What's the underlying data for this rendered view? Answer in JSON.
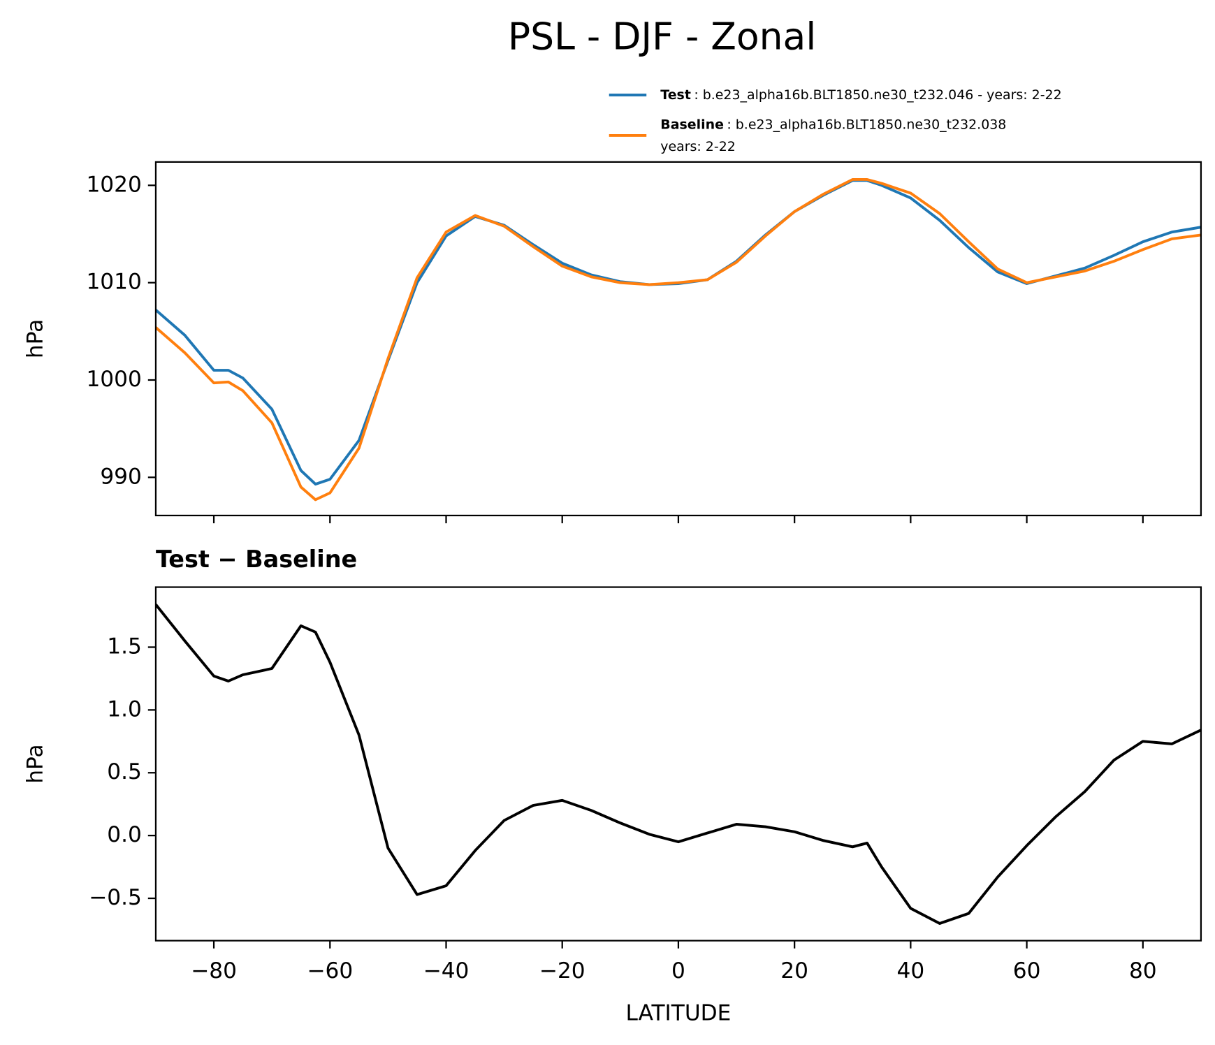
{
  "chart_data": [
    {
      "type": "line",
      "title": "PSL - DJF - Zonal",
      "ylabel": "hPa",
      "x": [
        -90,
        -85,
        -80,
        -77.5,
        -75,
        -70,
        -65,
        -62.5,
        -60,
        -55,
        -50,
        -45,
        -40,
        -35,
        -30,
        -25,
        -20,
        -15,
        -10,
        -5,
        0,
        5,
        10,
        15,
        20,
        25,
        30,
        32.5,
        35,
        40,
        45,
        50,
        55,
        60,
        65,
        70,
        75,
        80,
        85,
        90
      ],
      "series": [
        {
          "name": "Test",
          "description": [
            ": b.e23_alpha16b.BLT1850.ne30_t232.046 - years: 2-22"
          ],
          "color": "#1f77b4",
          "values": [
            1007.2,
            1004.6,
            1001.0,
            1001.0,
            1000.2,
            997.0,
            990.7,
            989.3,
            989.8,
            993.8,
            1002.0,
            1010.0,
            1014.8,
            1016.8,
            1015.9,
            1013.9,
            1012.0,
            1010.8,
            1010.1,
            1009.8,
            1009.9,
            1010.3,
            1012.2,
            1014.9,
            1017.3,
            1019.0,
            1020.5,
            1020.5,
            1020.0,
            1018.7,
            1016.4,
            1013.6,
            1011.1,
            1009.9,
            1010.7,
            1011.5,
            1012.8,
            1014.2,
            1015.2,
            1015.7
          ]
        },
        {
          "name": "Baseline",
          "description": [
            ": b.e23_alpha16b.BLT1850.ne30_t232.038",
            "years: 2-22"
          ],
          "color": "#ff7f0e",
          "values": [
            1005.4,
            1002.8,
            999.7,
            999.8,
            998.9,
            995.6,
            989.0,
            987.7,
            988.4,
            993.0,
            1002.2,
            1010.5,
            1015.2,
            1016.9,
            1015.8,
            1013.7,
            1011.7,
            1010.6,
            1010.0,
            1009.8,
            1010.0,
            1010.3,
            1012.1,
            1014.8,
            1017.3,
            1019.1,
            1020.6,
            1020.6,
            1020.2,
            1019.2,
            1017.1,
            1014.2,
            1011.4,
            1010.0,
            1010.6,
            1011.2,
            1012.2,
            1013.4,
            1014.5,
            1014.9
          ]
        }
      ],
      "xlim": [
        -90,
        90
      ],
      "xticks": [
        -80,
        -60,
        -40,
        -20,
        0,
        20,
        40,
        60,
        80
      ],
      "ylim": [
        986.08,
        1022.4
      ],
      "yticks": [
        990,
        1000,
        1010,
        1020
      ]
    },
    {
      "type": "line",
      "title": "Test − Baseline",
      "ylabel": "hPa",
      "xlabel": "LATITUDE",
      "x": [
        -90,
        -85,
        -80,
        -77.5,
        -75,
        -70,
        -65,
        -62.5,
        -60,
        -55,
        -50,
        -45,
        -40,
        -35,
        -30,
        -25,
        -20,
        -15,
        -10,
        -5,
        0,
        5,
        10,
        15,
        20,
        25,
        30,
        32.5,
        35,
        40,
        45,
        50,
        55,
        60,
        65,
        70,
        75,
        80,
        85,
        90
      ],
      "series": [
        {
          "color": "#000000",
          "values": [
            1.84,
            1.55,
            1.27,
            1.23,
            1.28,
            1.33,
            1.67,
            1.62,
            1.38,
            0.8,
            -0.1,
            -0.47,
            -0.4,
            -0.12,
            0.12,
            0.24,
            0.28,
            0.2,
            0.1,
            0.01,
            -0.05,
            0.02,
            0.09,
            0.07,
            0.03,
            -0.04,
            -0.09,
            -0.06,
            -0.25,
            -0.58,
            -0.7,
            -0.62,
            -0.33,
            -0.08,
            0.15,
            0.35,
            0.6,
            0.75,
            0.73,
            0.84
          ]
        }
      ],
      "xlim": [
        -90,
        90
      ],
      "xticks": [
        {
          "value": -80,
          "label": "−80"
        },
        {
          "value": -60,
          "label": "−60"
        },
        {
          "value": -40,
          "label": "−40"
        },
        {
          "value": -20,
          "label": "−20"
        },
        0,
        20,
        40,
        60,
        80
      ],
      "ylim": [
        -0.837,
        1.978
      ],
      "yticks": [
        {
          "value": -0.5,
          "label": "−0.5"
        },
        {
          "value": 0,
          "label": "0.0"
        },
        0.5,
        {
          "value": 1,
          "label": "1.0"
        },
        1.5
      ]
    }
  ]
}
